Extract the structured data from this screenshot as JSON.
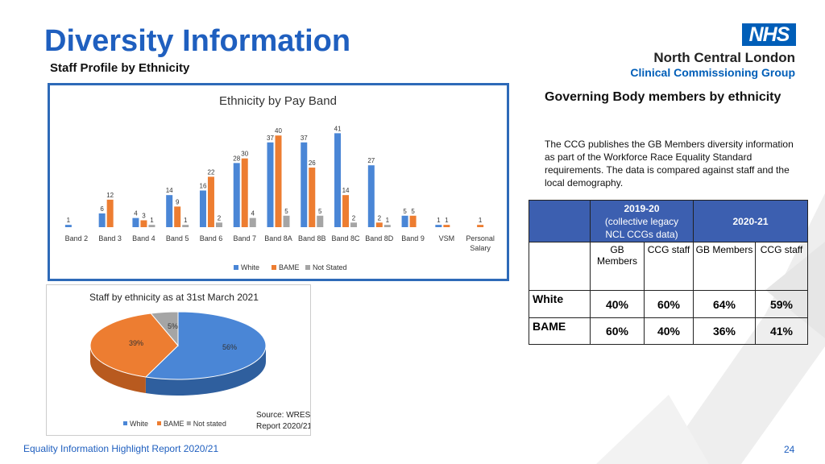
{
  "header": {
    "title": "Diversity Information",
    "subtitle": "Staff Profile by Ethnicity",
    "nhs_logo": "NHS",
    "org_name": "North Central London",
    "org_group": "Clinical Commissioning Group"
  },
  "colors": {
    "white": "#4a86d6",
    "bame": "#ed7d31",
    "not_stated": "#a5a5a5",
    "accent": "#1f5fbf",
    "table_header": "#3c5fb0"
  },
  "chart_data": [
    {
      "type": "bar",
      "title": "Ethnicity by Pay Band",
      "categories": [
        "Band 2",
        "Band 3",
        "Band 4",
        "Band 5",
        "Band 6",
        "Band 7",
        "Band 8A",
        "Band 8B",
        "Band 8C",
        "Band 8D",
        "Band 9",
        "VSM",
        "Personal Salary"
      ],
      "series": [
        {
          "name": "White",
          "values": [
            1,
            6,
            4,
            14,
            16,
            28,
            37,
            37,
            41,
            27,
            5,
            1,
            null
          ]
        },
        {
          "name": "BAME",
          "values": [
            null,
            12,
            3,
            9,
            22,
            30,
            40,
            26,
            14,
            2,
            5,
            1,
            1
          ]
        },
        {
          "name": "Not Stated",
          "values": [
            null,
            null,
            1,
            1,
            2,
            4,
            5,
            5,
            2,
            1,
            null,
            null,
            null
          ]
        }
      ],
      "ylim": [
        0,
        45
      ],
      "legend": "bottom",
      "grid": false
    },
    {
      "type": "pie",
      "title": "Staff by ethnicity as at 31st March 2021",
      "labels": [
        "White",
        "BAME",
        "Not stated"
      ],
      "values": [
        56,
        39,
        5
      ],
      "value_labels": [
        "56%",
        "39%",
        "5%"
      ],
      "legend": "bottom",
      "note": "Source: WRES Report 2020/21"
    }
  ],
  "gb": {
    "heading": "Governing Body members by ethnicity",
    "text": "The CCG publishes the GB Members diversity information as part of the Workforce Race Equality Standard requirements. The data is compared against staff and the local demography.",
    "h2019": "2019-20",
    "h2019_sub1": "(collective legacy",
    "h2019_sub2": "NCL CCGs data)",
    "h2021": "2020-21",
    "cols": [
      "GB Members",
      "CCG staff",
      "GB Members",
      "CCG staff"
    ],
    "rows": [
      {
        "label": "White",
        "values": [
          "40%",
          "60%",
          "64%",
          "59%"
        ]
      },
      {
        "label": "BAME",
        "values": [
          "60%",
          "40%",
          "36%",
          "41%"
        ]
      }
    ]
  },
  "footer": {
    "left": "Equality Information Highlight Report 2020/21",
    "page": "24"
  }
}
